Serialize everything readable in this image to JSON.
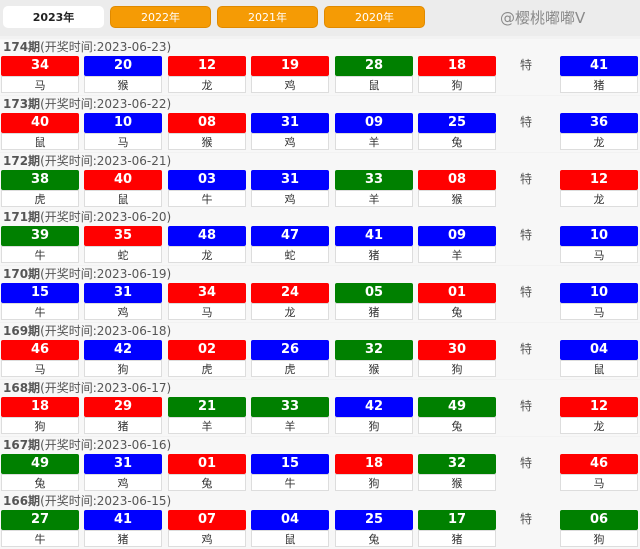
{
  "tabs": [
    {
      "label": "2023年",
      "active": true
    },
    {
      "label": "2022年"
    },
    {
      "label": "2021年"
    },
    {
      "label": "2020年"
    }
  ],
  "colors": {
    "red": "#ff0000",
    "blue": "#0000ff",
    "green": "#008000",
    "tab_orange": "#f59b05"
  },
  "special_label": "特",
  "draws": [
    {
      "period": "174期",
      "time": "(开奖时间:2023-06-23)",
      "balls": [
        [
          "34",
          "马",
          "red"
        ],
        [
          "20",
          "猴",
          "blue"
        ],
        [
          "12",
          "龙",
          "red"
        ],
        [
          "19",
          "鸡",
          "red"
        ],
        [
          "28",
          "鼠",
          "green"
        ],
        [
          "18",
          "狗",
          "red"
        ]
      ],
      "special": [
        "41",
        "猪",
        "blue"
      ]
    },
    {
      "period": "173期",
      "time": "(开奖时间:2023-06-22)",
      "balls": [
        [
          "40",
          "鼠",
          "red"
        ],
        [
          "10",
          "马",
          "blue"
        ],
        [
          "08",
          "猴",
          "red"
        ],
        [
          "31",
          "鸡",
          "blue"
        ],
        [
          "09",
          "羊",
          "blue"
        ],
        [
          "25",
          "兔",
          "blue"
        ]
      ],
      "special": [
        "36",
        "龙",
        "blue"
      ]
    },
    {
      "period": "172期",
      "time": "(开奖时间:2023-06-21)",
      "balls": [
        [
          "38",
          "虎",
          "green"
        ],
        [
          "40",
          "鼠",
          "red"
        ],
        [
          "03",
          "牛",
          "blue"
        ],
        [
          "31",
          "鸡",
          "blue"
        ],
        [
          "33",
          "羊",
          "green"
        ],
        [
          "08",
          "猴",
          "red"
        ]
      ],
      "special": [
        "12",
        "龙",
        "red"
      ]
    },
    {
      "period": "171期",
      "time": "(开奖时间:2023-06-20)",
      "balls": [
        [
          "39",
          "牛",
          "green"
        ],
        [
          "35",
          "蛇",
          "red"
        ],
        [
          "48",
          "龙",
          "blue"
        ],
        [
          "47",
          "蛇",
          "blue"
        ],
        [
          "41",
          "猪",
          "blue"
        ],
        [
          "09",
          "羊",
          "blue"
        ]
      ],
      "special": [
        "10",
        "马",
        "blue"
      ]
    },
    {
      "period": "170期",
      "time": "(开奖时间:2023-06-19)",
      "balls": [
        [
          "15",
          "牛",
          "blue"
        ],
        [
          "31",
          "鸡",
          "blue"
        ],
        [
          "34",
          "马",
          "red"
        ],
        [
          "24",
          "龙",
          "red"
        ],
        [
          "05",
          "猪",
          "green"
        ],
        [
          "01",
          "兔",
          "red"
        ]
      ],
      "special": [
        "10",
        "马",
        "blue"
      ]
    },
    {
      "period": "169期",
      "time": "(开奖时间:2023-06-18)",
      "balls": [
        [
          "46",
          "马",
          "red"
        ],
        [
          "42",
          "狗",
          "blue"
        ],
        [
          "02",
          "虎",
          "red"
        ],
        [
          "26",
          "虎",
          "blue"
        ],
        [
          "32",
          "猴",
          "green"
        ],
        [
          "30",
          "狗",
          "red"
        ]
      ],
      "special": [
        "04",
        "鼠",
        "blue"
      ]
    },
    {
      "period": "168期",
      "time": "(开奖时间:2023-06-17)",
      "balls": [
        [
          "18",
          "狗",
          "red"
        ],
        [
          "29",
          "猪",
          "red"
        ],
        [
          "21",
          "羊",
          "green"
        ],
        [
          "33",
          "羊",
          "green"
        ],
        [
          "42",
          "狗",
          "blue"
        ],
        [
          "49",
          "兔",
          "green"
        ]
      ],
      "special": [
        "12",
        "龙",
        "red"
      ]
    },
    {
      "period": "167期",
      "time": "(开奖时间:2023-06-16)",
      "balls": [
        [
          "49",
          "兔",
          "green"
        ],
        [
          "31",
          "鸡",
          "blue"
        ],
        [
          "01",
          "兔",
          "red"
        ],
        [
          "15",
          "牛",
          "blue"
        ],
        [
          "18",
          "狗",
          "red"
        ],
        [
          "32",
          "猴",
          "green"
        ]
      ],
      "special": [
        "46",
        "马",
        "red"
      ]
    },
    {
      "period": "166期",
      "time": "(开奖时间:2023-06-15)",
      "balls": [
        [
          "27",
          "牛",
          "green"
        ],
        [
          "41",
          "猪",
          "blue"
        ],
        [
          "07",
          "鸡",
          "red"
        ],
        [
          "04",
          "鼠",
          "blue"
        ],
        [
          "25",
          "兔",
          "blue"
        ],
        [
          "17",
          "猪",
          "green"
        ]
      ],
      "special": [
        "06",
        "狗",
        "green"
      ]
    }
  ],
  "watermark": "@樱桃嘟嘟V"
}
